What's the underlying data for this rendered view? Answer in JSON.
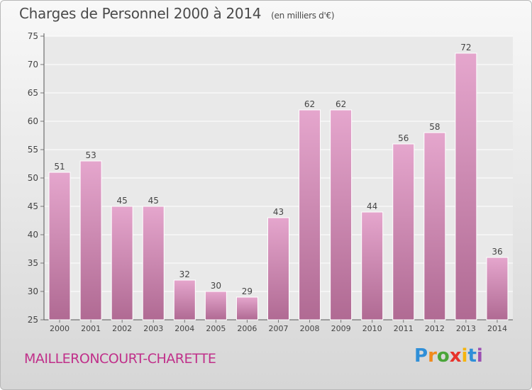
{
  "chart_data": {
    "type": "bar",
    "title": "Charges de Personnel 2000 à 2014",
    "subtitle": "(en milliers d'€)",
    "categories": [
      "2000",
      "2001",
      "2002",
      "2003",
      "2004",
      "2005",
      "2006",
      "2007",
      "2008",
      "2009",
      "2010",
      "2011",
      "2012",
      "2013",
      "2014"
    ],
    "values": [
      51,
      53,
      45,
      45,
      32,
      30,
      29,
      43,
      62,
      62,
      44,
      56,
      58,
      72,
      36
    ],
    "ylim": [
      25,
      75
    ],
    "yticks": [
      25,
      30,
      35,
      40,
      45,
      50,
      55,
      60,
      65,
      70,
      75
    ],
    "grid": true,
    "bar_color_top": "#e5a6cd",
    "bar_color_bottom": "#b06a93"
  },
  "footer": {
    "commune": "MAILLERONCOURT-CHARETTE",
    "commune_color": "#c0308a"
  },
  "logo": {
    "letters": [
      "P",
      "r",
      "o",
      "x",
      "i",
      "t",
      "i"
    ],
    "colors": [
      "#2f8fd8",
      "#f08a1c",
      "#4aa53a",
      "#e8332b",
      "#f5b50f",
      "#2f8fd8",
      "#9c4fb3"
    ]
  }
}
